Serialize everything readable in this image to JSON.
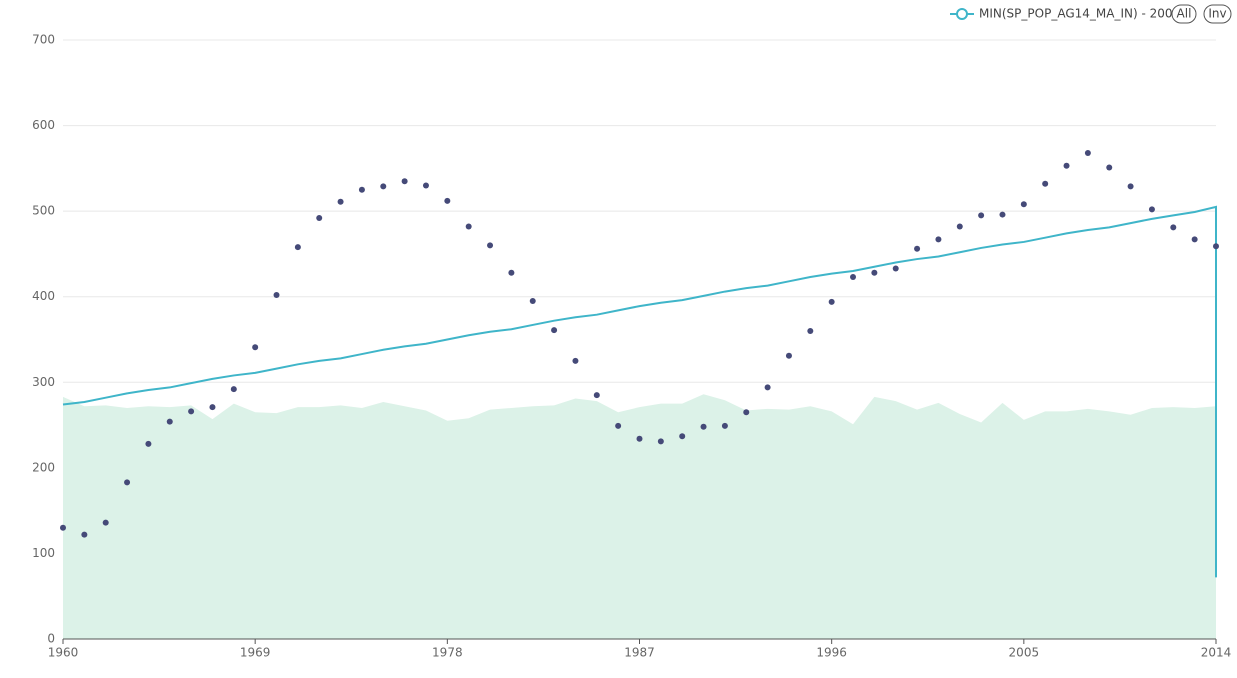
{
  "chart_data": {
    "type": "line",
    "legend": "top-right",
    "buttons": [
      "All",
      "Inv"
    ],
    "x": [
      1960,
      1961,
      1962,
      1963,
      1964,
      1965,
      1966,
      1967,
      1968,
      1969,
      1970,
      1971,
      1972,
      1973,
      1974,
      1975,
      1976,
      1977,
      1978,
      1979,
      1980,
      1981,
      1982,
      1983,
      1984,
      1985,
      1986,
      1987,
      1988,
      1989,
      1990,
      1991,
      1992,
      1993,
      1994,
      1995,
      1996,
      1997,
      1998,
      1999,
      2000,
      2001,
      2002,
      2003,
      2004,
      2005,
      2006,
      2007,
      2008,
      2009,
      2010,
      2011,
      2012,
      2013,
      2014
    ],
    "xlim": [
      1960,
      2014
    ],
    "xticks": [
      1960,
      1969,
      1978,
      1987,
      1996,
      2005,
      2014
    ],
    "ylim": [
      0,
      700
    ],
    "yticks": [
      0,
      100,
      200,
      300,
      400,
      500,
      600,
      700
    ],
    "grid": true,
    "series": [
      {
        "name": "MIN(SP_POP_AG14_MA_IN) - 200",
        "type": "line",
        "color": "#3fb5c9",
        "x": [
          1960,
          1961,
          1962,
          1963,
          1964,
          1965,
          1966,
          1967,
          1968,
          1969,
          1970,
          1971,
          1972,
          1973,
          1974,
          1975,
          1976,
          1977,
          1978,
          1979,
          1980,
          1981,
          1982,
          1983,
          1984,
          1985,
          1986,
          1987,
          1988,
          1989,
          1990,
          1991,
          1992,
          1993,
          1994,
          1995,
          1996,
          1997,
          1998,
          1999,
          2000,
          2001,
          2002,
          2003,
          2004,
          2005,
          2006,
          2007,
          2008,
          2009,
          2010,
          2011,
          2012,
          2013,
          2014,
          2014
        ],
        "values": [
          274,
          277,
          282,
          287,
          291,
          294,
          299,
          304,
          308,
          311,
          316,
          321,
          325,
          328,
          333,
          338,
          342,
          345,
          350,
          355,
          359,
          362,
          367,
          372,
          376,
          379,
          384,
          389,
          393,
          396,
          401,
          406,
          410,
          413,
          418,
          423,
          427,
          430,
          435,
          440,
          444,
          447,
          452,
          457,
          461,
          464,
          469,
          474,
          478,
          481,
          486,
          491,
          495,
          499,
          505,
          72
        ]
      },
      {
        "type": "scatter",
        "color": "#454a78",
        "values": [
          130,
          122,
          136,
          183,
          228,
          254,
          266,
          271,
          292,
          341,
          402,
          458,
          492,
          511,
          525,
          529,
          535,
          530,
          512,
          482,
          460,
          428,
          395,
          361,
          325,
          285,
          249,
          234,
          231,
          237,
          248,
          249,
          265,
          294,
          331,
          360,
          394,
          423,
          428,
          433,
          456,
          467,
          482,
          495,
          496,
          508,
          532,
          553,
          568,
          551,
          529,
          502,
          481,
          467,
          459
        ]
      },
      {
        "type": "area",
        "color": "#dcf2e8",
        "values": [
          283,
          272,
          273,
          270,
          272,
          271,
          273,
          257,
          275,
          265,
          264,
          271,
          271,
          273,
          270,
          277,
          272,
          267,
          255,
          258,
          268,
          270,
          272,
          273,
          281,
          278,
          265,
          271,
          275,
          275,
          286,
          279,
          267,
          269,
          268,
          272,
          266,
          251,
          283,
          278,
          268,
          276,
          263,
          253,
          276,
          256,
          266,
          266,
          269,
          266,
          262,
          270,
          271,
          270,
          272
        ]
      }
    ]
  }
}
